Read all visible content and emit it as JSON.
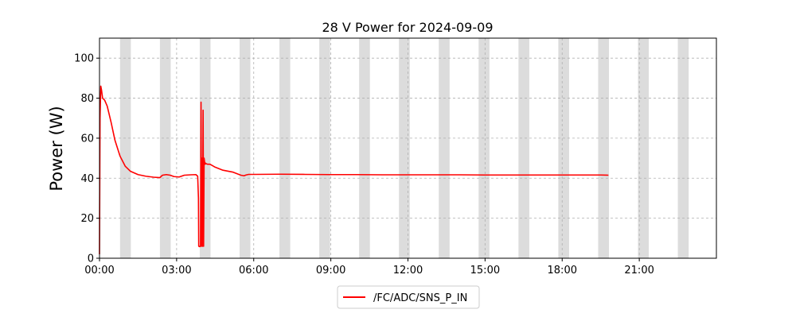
{
  "chart_data": {
    "type": "line",
    "title": "28 V Power for 2024-09-09",
    "xlabel": "",
    "ylabel": "Power (W)",
    "x_unit": "hours",
    "xlim": [
      0,
      24
    ],
    "ylim": [
      0,
      110
    ],
    "x_ticks": [
      {
        "value": 0,
        "label": "00:00"
      },
      {
        "value": 3,
        "label": "03:00"
      },
      {
        "value": 6,
        "label": "06:00"
      },
      {
        "value": 9,
        "label": "09:00"
      },
      {
        "value": 12,
        "label": "12:00"
      },
      {
        "value": 15,
        "label": "15:00"
      },
      {
        "value": 18,
        "label": "18:00"
      },
      {
        "value": 21,
        "label": "21:00"
      }
    ],
    "y_ticks": [
      {
        "value": 0,
        "label": "0"
      },
      {
        "value": 20,
        "label": "20"
      },
      {
        "value": 40,
        "label": "40"
      },
      {
        "value": 60,
        "label": "60"
      },
      {
        "value": 80,
        "label": "80"
      },
      {
        "value": 100,
        "label": "100"
      }
    ],
    "grid": true,
    "legend_position": "bottom-center",
    "shaded_intervals": [
      [
        0.8,
        1.22
      ],
      [
        2.35,
        2.77
      ],
      [
        3.9,
        4.32
      ],
      [
        5.45,
        5.87
      ],
      [
        7.0,
        7.42
      ],
      [
        8.55,
        8.97
      ],
      [
        10.1,
        10.52
      ],
      [
        11.65,
        12.07
      ],
      [
        13.2,
        13.62
      ],
      [
        14.75,
        15.17
      ],
      [
        16.3,
        16.72
      ],
      [
        17.85,
        18.27
      ],
      [
        19.4,
        19.82
      ],
      [
        20.95,
        21.37
      ],
      [
        22.5,
        22.92
      ]
    ],
    "shade_color": "#dcdcdc",
    "series": [
      {
        "name": "/FC/ADC/SNS_P_IN",
        "color": "#ff0000",
        "x": [
          0.0,
          0.02,
          0.05,
          0.08,
          0.12,
          0.2,
          0.3,
          0.45,
          0.6,
          0.8,
          1.0,
          1.2,
          1.5,
          1.8,
          2.1,
          2.35,
          2.45,
          2.6,
          2.75,
          2.9,
          3.1,
          3.3,
          3.55,
          3.75,
          3.82,
          3.85,
          3.86,
          3.87,
          3.9,
          3.93,
          3.95,
          3.97,
          3.99,
          4.01,
          4.03,
          4.05,
          4.07,
          4.09,
          4.11,
          4.13,
          4.15,
          4.2,
          4.3,
          4.5,
          4.8,
          5.2,
          5.5,
          5.62,
          5.7,
          5.8,
          6.0,
          7.0,
          8.0,
          9.0,
          10.0,
          11.0,
          12.0,
          13.0,
          14.0,
          15.0,
          16.0,
          17.0,
          18.0,
          19.0,
          19.5,
          19.8
        ],
        "y": [
          2,
          70,
          86,
          84,
          80,
          79,
          76,
          68,
          59,
          51,
          46,
          43.5,
          41.8,
          41,
          40.5,
          40.3,
          41.5,
          41.8,
          41.5,
          40.8,
          40.6,
          41.5,
          41.7,
          41.8,
          41,
          30,
          6,
          6,
          5.8,
          6,
          78,
          6,
          50,
          6,
          74,
          6,
          50,
          48,
          47,
          47.5,
          47.2,
          47,
          47,
          45.5,
          44,
          43,
          41.5,
          41.2,
          41.6,
          41.9,
          41.9,
          42.0,
          41.9,
          41.8,
          41.8,
          41.7,
          41.7,
          41.7,
          41.7,
          41.6,
          41.6,
          41.6,
          41.6,
          41.6,
          41.6,
          41.5
        ]
      }
    ]
  }
}
